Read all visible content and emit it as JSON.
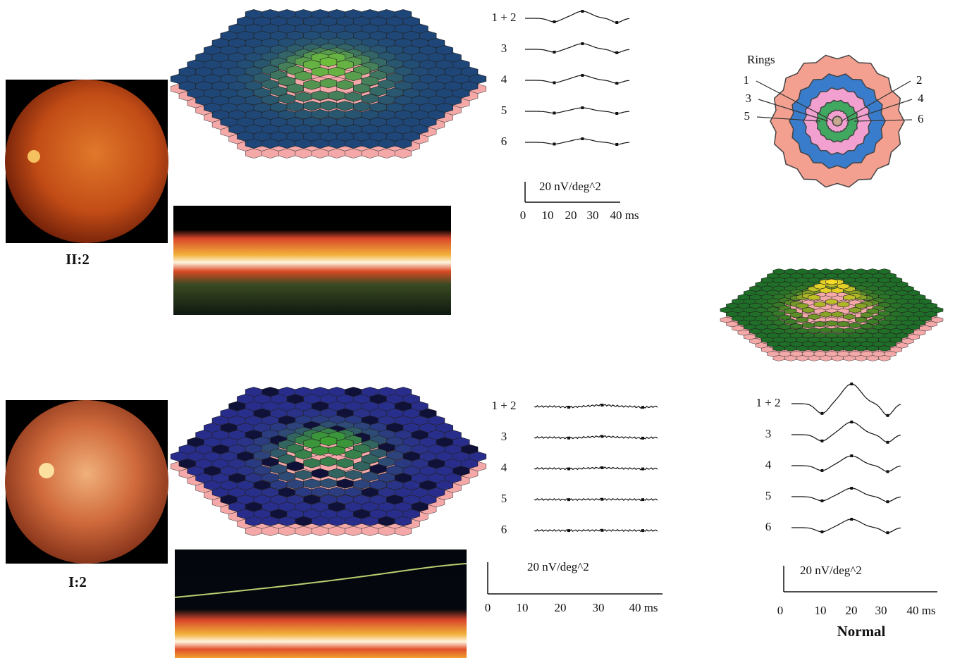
{
  "panels": [
    {
      "label": "II:2",
      "trace_labels": [
        "1 + 2",
        "3",
        "4",
        "5",
        "6"
      ],
      "scale_label": "20 nV/deg^2",
      "time_ticks": [
        "0",
        "10",
        "20",
        "30",
        "40 ms"
      ]
    },
    {
      "label": "I:2",
      "trace_labels": [
        "1 + 2",
        "3",
        "4",
        "5",
        "6"
      ],
      "scale_label": "20 nV/deg^2",
      "time_ticks": [
        "0",
        "10",
        "20",
        "30",
        "40 ms"
      ]
    }
  ],
  "normal": {
    "rings_title": "Rings",
    "ring_labels": [
      "1",
      "2",
      "3",
      "4",
      "5",
      "6"
    ],
    "trace_labels": [
      "1 + 2",
      "3",
      "4",
      "5",
      "6"
    ],
    "scale_label": "20 nV/deg^2",
    "time_ticks": [
      "0",
      "10",
      "20",
      "30",
      "40 ms"
    ],
    "label": "Normal"
  }
}
